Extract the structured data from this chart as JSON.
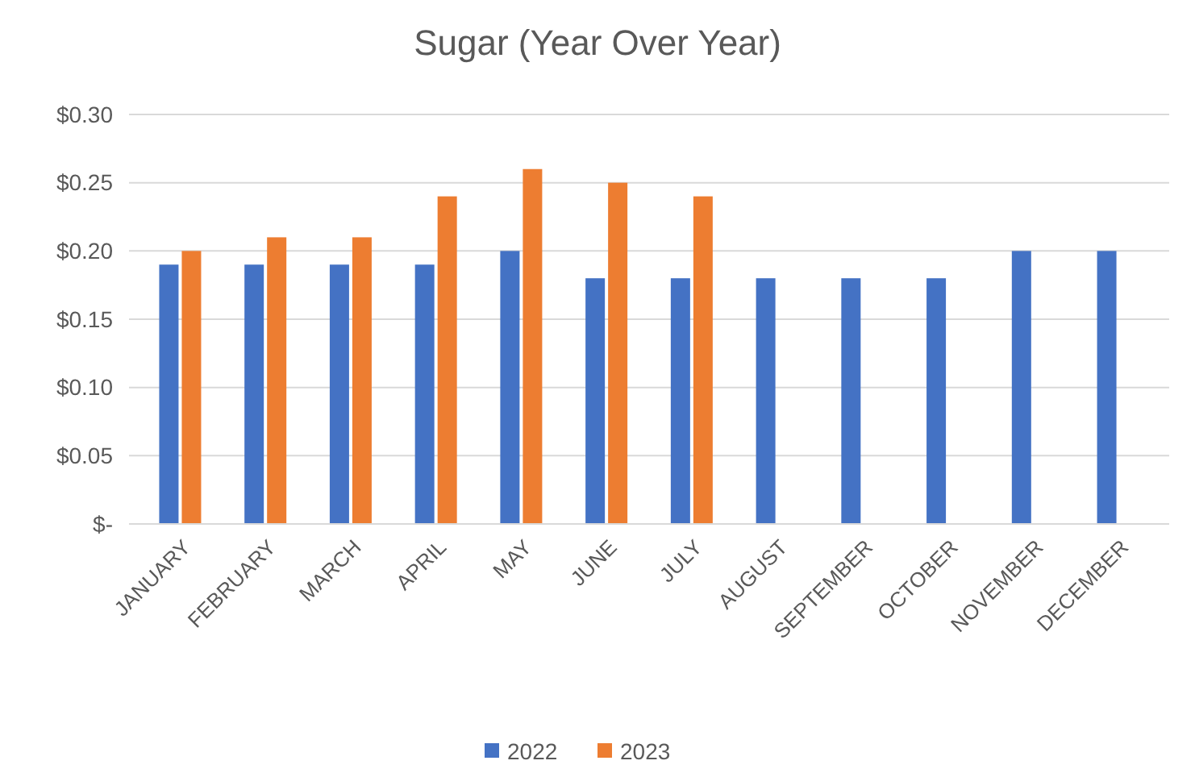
{
  "chart_data": {
    "type": "bar",
    "title": "Sugar (Year Over Year)",
    "categories": [
      "JANUARY",
      "FEBRUARY",
      "MARCH",
      "APRIL",
      "MAY",
      "JUNE",
      "JULY",
      "AUGUST",
      "SEPTEMBER",
      "OCTOBER",
      "NOVEMBER",
      "DECEMBER"
    ],
    "series": [
      {
        "name": "2022",
        "color": "#4472c4",
        "values": [
          0.19,
          0.19,
          0.19,
          0.19,
          0.2,
          0.18,
          0.18,
          0.18,
          0.18,
          0.18,
          0.2,
          0.2
        ]
      },
      {
        "name": "2023",
        "color": "#ed7d31",
        "values": [
          0.2,
          0.21,
          0.21,
          0.24,
          0.26,
          0.25,
          0.24,
          null,
          null,
          null,
          null,
          null
        ]
      }
    ],
    "ylim": [
      0,
      0.3
    ],
    "yticks": [
      {
        "value": 0,
        "label": "$-"
      },
      {
        "value": 0.05,
        "label": "$0.05"
      },
      {
        "value": 0.1,
        "label": "$0.10"
      },
      {
        "value": 0.15,
        "label": "$0.15"
      },
      {
        "value": 0.2,
        "label": "$0.20"
      },
      {
        "value": 0.25,
        "label": "$0.25"
      },
      {
        "value": 0.3,
        "label": "$0.30"
      }
    ],
    "grid": "y",
    "legend": "bottom"
  }
}
